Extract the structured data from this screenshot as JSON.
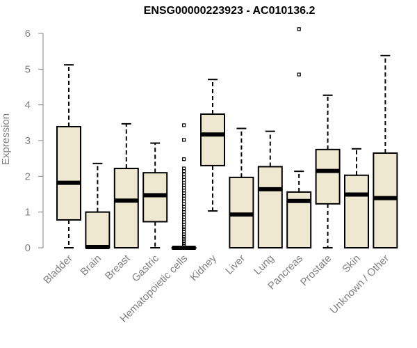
{
  "chart_data": {
    "type": "boxplot",
    "title": "ENSG00000223923 - AC010136.2",
    "ylabel": "Expression",
    "xlabel": "",
    "ylim": [
      0,
      6
    ],
    "yticks": [
      0,
      1,
      2,
      3,
      4,
      5,
      6
    ],
    "box_color": "#EEE8D0",
    "categories": [
      "Bladder",
      "Brain",
      "Breast",
      "Gastric",
      "Hematopoietic cells",
      "Kidney",
      "Liver",
      "Lung",
      "Pancreas",
      "Prostate",
      "Skin",
      "Unknown / Other"
    ],
    "boxes": [
      {
        "label": "Bladder",
        "whisker_low": 0,
        "q1": 0.78,
        "median": 1.82,
        "q3": 3.39,
        "whisker_high": 5.12,
        "outliers": []
      },
      {
        "label": "Brain",
        "whisker_low": 0,
        "q1": 0,
        "median": 0.02,
        "q3": 1.0,
        "whisker_high": 2.36,
        "outliers": []
      },
      {
        "label": "Breast",
        "whisker_low": 0,
        "q1": 0,
        "median": 1.32,
        "q3": 2.22,
        "whisker_high": 3.47,
        "outliers": []
      },
      {
        "label": "Gastric",
        "whisker_low": 0,
        "q1": 0.73,
        "median": 1.47,
        "q3": 2.1,
        "whisker_high": 2.93,
        "outliers": []
      },
      {
        "label": "Hematopoietic cells",
        "whisker_low": 0,
        "q1": 0,
        "median": 0,
        "q3": 0,
        "whisker_high": 0,
        "outliers": [
          3.43,
          3.02,
          2.48,
          2.22,
          2.15,
          2.05,
          1.98,
          1.9,
          1.82,
          1.75,
          1.68,
          1.6,
          1.53,
          1.45,
          1.38,
          1.3,
          1.22,
          1.15,
          1.08,
          1.0,
          0.93,
          0.86,
          0.79,
          0.72,
          0.65,
          0.58,
          0.52,
          0.45,
          0.38,
          0.31,
          0.25,
          0.18,
          0.12,
          0.06
        ]
      },
      {
        "label": "Kidney",
        "whisker_low": 1.03,
        "q1": 2.3,
        "median": 3.17,
        "q3": 3.74,
        "whisker_high": 4.71,
        "outliers": []
      },
      {
        "label": "Liver",
        "whisker_low": 0,
        "q1": 0,
        "median": 0.93,
        "q3": 1.97,
        "whisker_high": 3.34,
        "outliers": []
      },
      {
        "label": "Lung",
        "whisker_low": 0,
        "q1": 0,
        "median": 1.64,
        "q3": 2.27,
        "whisker_high": 3.26,
        "outliers": []
      },
      {
        "label": "Pancreas",
        "whisker_low": 0,
        "q1": 0,
        "median": 1.31,
        "q3": 1.56,
        "whisker_high": 2.14,
        "outliers": [
          4.85,
          6.12
        ]
      },
      {
        "label": "Prostate",
        "whisker_low": 0,
        "q1": 1.23,
        "median": 2.15,
        "q3": 2.75,
        "whisker_high": 4.27,
        "outliers": []
      },
      {
        "label": "Skin",
        "whisker_low": 0,
        "q1": 0,
        "median": 1.49,
        "q3": 2.03,
        "whisker_high": 2.77,
        "outliers": []
      },
      {
        "label": "Unknown / Other",
        "whisker_low": 0,
        "q1": 0,
        "median": 1.39,
        "q3": 2.65,
        "whisker_high": 5.38,
        "outliers": []
      }
    ]
  }
}
